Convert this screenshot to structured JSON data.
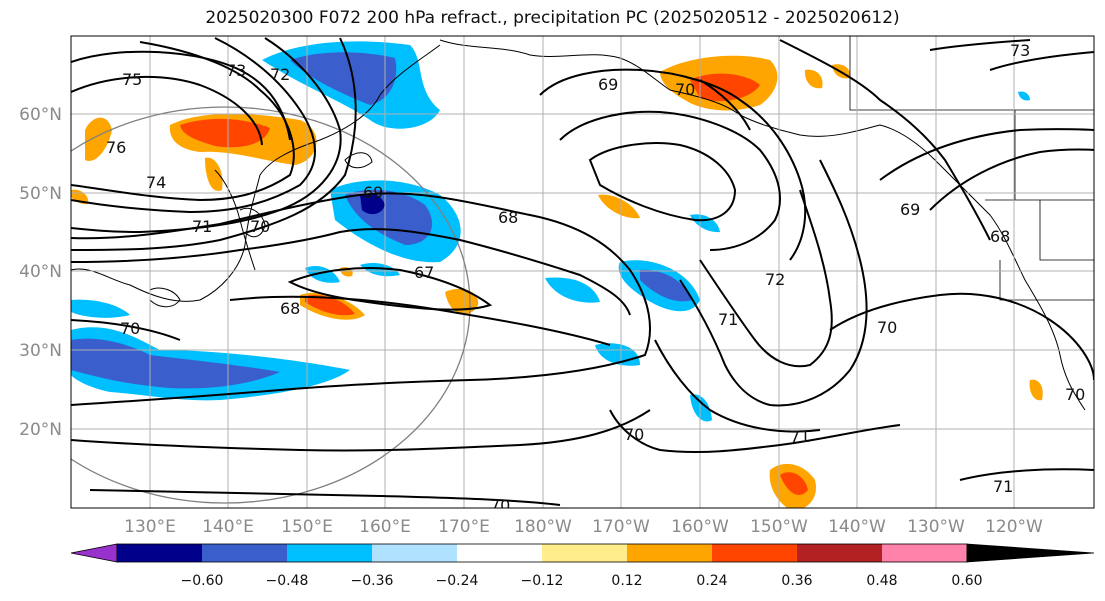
{
  "title": "2025020300 F072 200 hPa refract., precipitation PC (2025020512 - 2025020612)",
  "lat_labels": [
    "60°N",
    "50°N",
    "40°N",
    "30°N",
    "20°N"
  ],
  "lon_labels": [
    "130°E",
    "140°E",
    "150°E",
    "160°E",
    "170°E",
    "180°W",
    "170°W",
    "160°W",
    "150°W",
    "140°W",
    "130°W",
    "120°W"
  ],
  "contour_labels": [
    "75",
    "73",
    "72",
    "76",
    "74",
    "71",
    "70",
    "69",
    "68",
    "67",
    "68",
    "70",
    "69",
    "70",
    "72",
    "71",
    "70",
    "70",
    "71",
    "70",
    "69",
    "68",
    "71",
    "73",
    "70"
  ],
  "colorbar": {
    "ticks": [
      "−0.60",
      "−0.48",
      "−0.36",
      "−0.24",
      "−0.12",
      "0.12",
      "0.24",
      "0.36",
      "0.48",
      "0.60"
    ],
    "colors": [
      "#9932cc",
      "#00008b",
      "#3a5fcd",
      "#00bfff",
      "#b0e2ff",
      "#ffffff",
      "#ffec8b",
      "#ffa500",
      "#ff4500",
      "#b22222",
      "#ff82ab"
    ]
  }
}
